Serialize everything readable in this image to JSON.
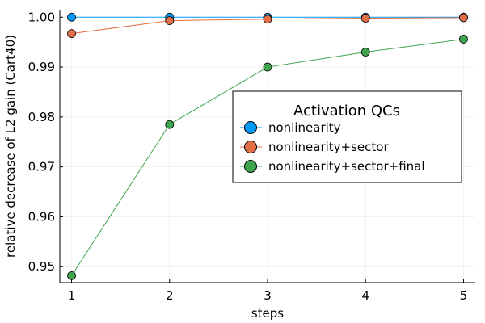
{
  "chart_data": {
    "type": "line",
    "xlabel": "steps",
    "ylabel": "relative decrease of L2 gain (Cart40)",
    "x": [
      1,
      2,
      3,
      4,
      5
    ],
    "xlim": [
      0.88,
      5.12
    ],
    "ylim": [
      0.9468,
      1.0015
    ],
    "xticks": [
      "1",
      "2",
      "3",
      "4",
      "5"
    ],
    "yticks": [
      "0.95",
      "0.96",
      "0.97",
      "0.98",
      "0.99",
      "1.00"
    ],
    "ytick_values": [
      0.95,
      0.96,
      0.97,
      0.98,
      0.99,
      1.0
    ],
    "grid": true,
    "legend": {
      "title": "Activation QCs",
      "position": "right"
    },
    "series": [
      {
        "name": "nonlinearity",
        "color": "#009AFA",
        "values": [
          1.0,
          1.0,
          1.0,
          1.0,
          1.0
        ]
      },
      {
        "name": "nonlinearity+sector",
        "color": "#E36F47",
        "values": [
          0.9967,
          0.9993,
          0.9996,
          0.9998,
          0.9999
        ]
      },
      {
        "name": "nonlinearity+sector+final",
        "color": "#3EA44E",
        "values": [
          0.9482,
          0.9785,
          0.99,
          0.993,
          0.9956
        ]
      }
    ]
  }
}
